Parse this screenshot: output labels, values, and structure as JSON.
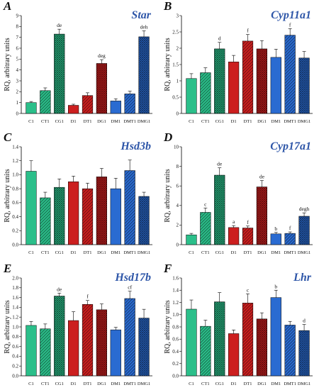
{
  "colors": {
    "C1": "#2bbf8a",
    "CT1": "#2bbf8a",
    "CG1": "#2bbf8a",
    "D1": "#cc1f1f",
    "DT1": "#cc1f1f",
    "DG1": "#cc1f1f",
    "DM1": "#2a6bd1",
    "DMT1": "#2a6bd1",
    "DMG1": "#2a6bd1"
  },
  "patterns": [
    "solid",
    "hatch",
    "cross",
    "solid",
    "hatch",
    "cross",
    "solid",
    "hatch",
    "cross"
  ],
  "chart_data": [
    {
      "letter": "A",
      "title": "Star",
      "type": "bar",
      "categories": [
        "C1",
        "CT1",
        "CG1",
        "D1",
        "DT1",
        "DG1",
        "DM1",
        "DMT1",
        "DMG1"
      ],
      "values": [
        1.0,
        2.1,
        7.3,
        0.75,
        1.65,
        4.6,
        1.15,
        1.8,
        7.05
      ],
      "errors": [
        0.1,
        0.25,
        0.45,
        0.1,
        0.25,
        0.35,
        0.2,
        0.25,
        0.55
      ],
      "significance": [
        "",
        "",
        "de",
        "",
        "",
        "deg",
        "",
        "",
        "deh"
      ],
      "ylabel": "RQ, arbitrary units",
      "ylim": [
        0,
        9
      ],
      "yticks": [
        0,
        1,
        2,
        3,
        4,
        5,
        6,
        7,
        8,
        9
      ],
      "ytick_labels": [
        "0",
        "1",
        "2",
        "3",
        "4",
        "5",
        "6",
        "7",
        "8",
        "9"
      ]
    },
    {
      "letter": "B",
      "title": "Cyp11a1",
      "type": "bar",
      "categories": [
        "C1",
        "CT1",
        "CG1",
        "D1",
        "DT1",
        "DG1",
        "DM1",
        "DMT1",
        "DMG1"
      ],
      "values": [
        1.07,
        1.25,
        1.98,
        1.58,
        2.22,
        1.98,
        1.72,
        2.4,
        1.7
      ],
      "errors": [
        0.15,
        0.15,
        0.2,
        0.2,
        0.2,
        0.25,
        0.25,
        0.2,
        0.2
      ],
      "significance": [
        "",
        "",
        "d",
        "",
        "f",
        "",
        "",
        "f",
        ""
      ],
      "ylabel": "RQ, arbitrary units",
      "ylim": [
        0,
        3
      ],
      "yticks": [
        0,
        0.5,
        1,
        1.5,
        2,
        2.5,
        3
      ],
      "ytick_labels": [
        "0",
        "0.5",
        "1",
        "1.5",
        "2",
        "2.5",
        "3"
      ]
    },
    {
      "letter": "C",
      "title": "Hsd3b",
      "type": "bar",
      "categories": [
        "C1",
        "CT1",
        "CG1",
        "D1",
        "DT1",
        "DG1",
        "DM1",
        "DMT1",
        "DMG1"
      ],
      "values": [
        1.05,
        0.67,
        0.82,
        0.9,
        0.8,
        0.97,
        0.8,
        1.06,
        0.69
      ],
      "errors": [
        0.15,
        0.08,
        0.12,
        0.08,
        0.08,
        0.12,
        0.15,
        0.15,
        0.06
      ],
      "significance": [
        "",
        "",
        "",
        "",
        "",
        "",
        "",
        "",
        ""
      ],
      "ylabel": "RQ, arbitrary units",
      "ylim": [
        0,
        1.4
      ],
      "yticks": [
        0,
        0.2,
        0.4,
        0.6,
        0.8,
        1.0,
        1.2,
        1.4
      ],
      "ytick_labels": [
        "0.0",
        "0.2",
        "0.4",
        "0.6",
        "0.8",
        "1.0",
        "1.2",
        "1.4"
      ]
    },
    {
      "letter": "D",
      "title": "Cyp17a1",
      "type": "bar",
      "categories": [
        "C1",
        "CT1",
        "CG1",
        "D1",
        "DT1",
        "DG1",
        "DM1",
        "DMT1",
        "DMG1"
      ],
      "values": [
        1.0,
        3.3,
        7.1,
        1.75,
        1.7,
        5.9,
        1.1,
        1.15,
        2.9
      ],
      "errors": [
        0.15,
        0.45,
        0.75,
        0.2,
        0.2,
        0.65,
        0.15,
        0.15,
        0.35
      ],
      "significance": [
        "",
        "c",
        "de",
        "a",
        "f",
        "de",
        "b",
        "f",
        "degh"
      ],
      "ylabel": "RQ, arbitrary units",
      "ylim": [
        0,
        10
      ],
      "yticks": [
        0,
        2,
        4,
        6,
        8,
        10
      ],
      "ytick_labels": [
        "0",
        "2",
        "4",
        "6",
        "8",
        "10"
      ]
    },
    {
      "letter": "E",
      "title": "Hsd17b",
      "type": "bar",
      "categories": [
        "C1",
        "CT1",
        "CG1",
        "D1",
        "DT1",
        "DG1",
        "DM1",
        "DMT1",
        "DMG1"
      ],
      "values": [
        1.03,
        0.96,
        1.63,
        1.13,
        1.46,
        1.35,
        0.94,
        1.58,
        1.18
      ],
      "errors": [
        0.08,
        0.1,
        0.06,
        0.18,
        0.08,
        0.12,
        0.05,
        0.15,
        0.18
      ],
      "significance": [
        "",
        "",
        "de",
        "",
        "f",
        "",
        "",
        "cf",
        ""
      ],
      "ylabel": "RQ, arbitrary units",
      "ylim": [
        0,
        2.0
      ],
      "yticks": [
        0,
        0.2,
        0.4,
        0.6,
        0.8,
        1.0,
        1.2,
        1.4,
        1.6,
        1.8,
        2.0
      ],
      "ytick_labels": [
        "0.0",
        "0.2",
        "0.4",
        "0.6",
        "0.8",
        "1.0",
        "1.2",
        "1.4",
        "1.6",
        "1.8",
        "2.0"
      ]
    },
    {
      "letter": "F",
      "title": "Lhr",
      "type": "bar",
      "categories": [
        "C1",
        "CT1",
        "CG1",
        "D1",
        "DT1",
        "DG1",
        "DM1",
        "DMT1",
        "DMG1"
      ],
      "values": [
        1.09,
        0.81,
        1.21,
        0.69,
        1.19,
        0.93,
        1.28,
        0.83,
        0.74
      ],
      "errors": [
        0.15,
        0.1,
        0.15,
        0.06,
        0.15,
        0.1,
        0.12,
        0.06,
        0.1
      ],
      "significance": [
        "",
        "",
        "",
        "",
        "c",
        "",
        "b",
        "",
        "d"
      ],
      "ylabel": "RQ, arbitrary units",
      "ylim": [
        0,
        1.6
      ],
      "yticks": [
        0,
        0.2,
        0.4,
        0.6,
        0.8,
        1.0,
        1.2,
        1.4,
        1.6
      ],
      "ytick_labels": [
        "0.0",
        "0.2",
        "0.4",
        "0.6",
        "0.8",
        "1.0",
        "1.2",
        "1.4",
        "1.6"
      ]
    }
  ]
}
